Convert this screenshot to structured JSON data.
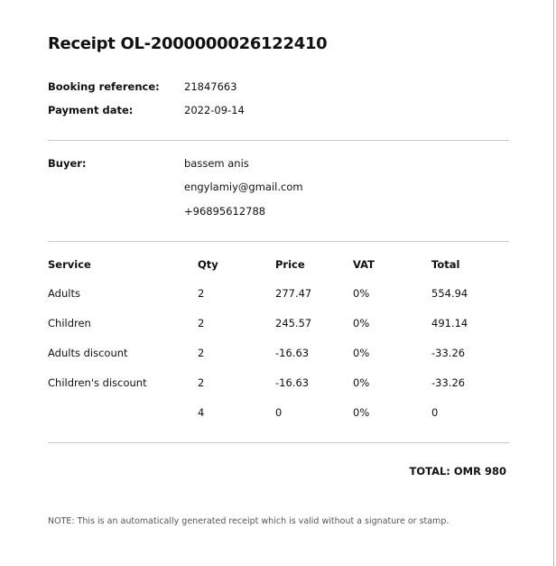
{
  "title": "Receipt OL-2000000026122410",
  "booking_reference": {
    "label": "Booking reference:",
    "value": "21847663"
  },
  "payment_date": {
    "label": "Payment date:",
    "value": "2022-09-14"
  },
  "buyer": {
    "label": "Buyer:",
    "name": "bassem anis",
    "email": "engylamiy@gmail.com",
    "phone": "+96895612788"
  },
  "table": {
    "headers": [
      "Service",
      "Qty",
      "Price",
      "VAT",
      "Total"
    ],
    "rows": [
      [
        "Adults",
        "2",
        "277.47",
        "0%",
        "554.94"
      ],
      [
        "Children",
        "2",
        "245.57",
        "0%",
        "491.14"
      ],
      [
        "Adults discount",
        "2",
        "-16.63",
        "0%",
        "-33.26"
      ],
      [
        "Children's discount",
        "2",
        "-16.63",
        "0%",
        "-33.26"
      ],
      [
        "",
        "4",
        "0",
        "0%",
        "0"
      ]
    ]
  },
  "total": "TOTAL: OMR 980",
  "note": "NOTE: This is an automatically generated receipt which is valid without a signature or stamp."
}
